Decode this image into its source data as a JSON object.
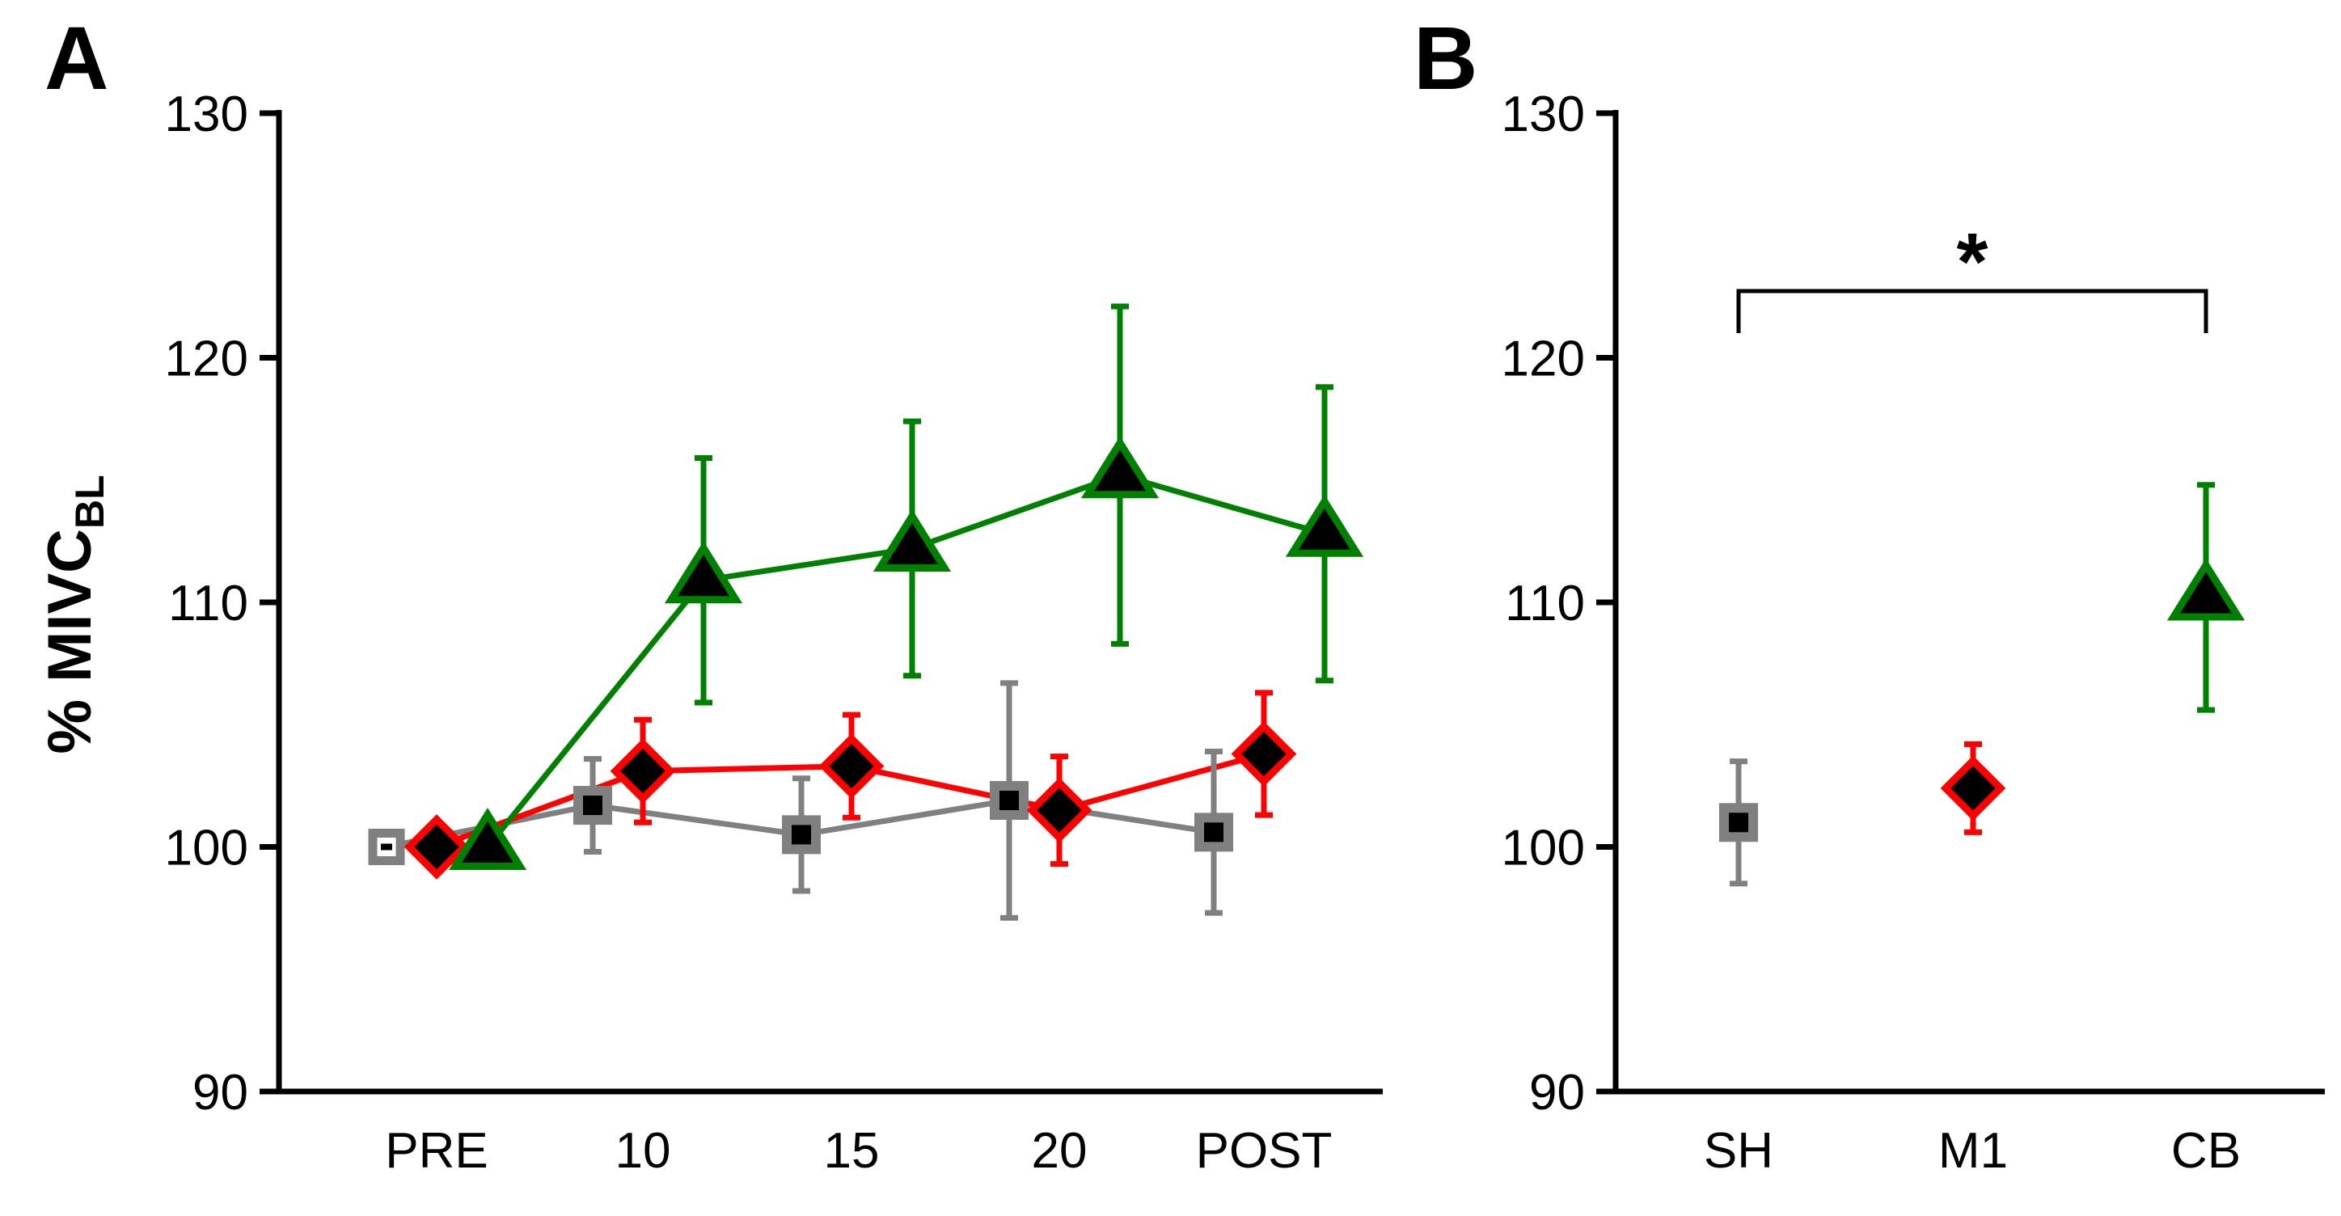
{
  "chart_data": [
    {
      "panel": "A",
      "type": "line",
      "ylabel": "% MIVC",
      "ylabel_sub": "BL",
      "ylim": [
        90,
        130
      ],
      "yticks": [
        "90",
        "100",
        "110",
        "120",
        "130"
      ],
      "categories": [
        "PRE",
        "10",
        "15",
        "20",
        "POST"
      ],
      "series": [
        {
          "name": "SH",
          "color": "#808080",
          "marker": "square",
          "values": [
            100.0,
            101.7,
            100.5,
            101.9,
            100.6
          ],
          "errors": [
            0.0,
            1.9,
            2.3,
            4.8,
            3.3
          ]
        },
        {
          "name": "M1",
          "color": "#ff0000",
          "marker": "diamond",
          "values": [
            100.0,
            103.1,
            103.3,
            101.5,
            103.8
          ],
          "errors": [
            0.0,
            2.1,
            2.1,
            2.2,
            2.5
          ]
        },
        {
          "name": "CB",
          "color": "#008000",
          "marker": "triangle",
          "values": [
            100.0,
            110.9,
            112.2,
            115.2,
            112.8
          ],
          "errors": [
            0.0,
            5.0,
            5.2,
            6.9,
            6.0
          ]
        }
      ]
    },
    {
      "panel": "B",
      "type": "scatter",
      "ylim": [
        90,
        130
      ],
      "yticks": [
        "90",
        "100",
        "110",
        "120",
        "130"
      ],
      "categories": [
        "SH",
        "M1",
        "CB"
      ],
      "series": [
        {
          "name": "SH",
          "color": "#808080",
          "marker": "square",
          "value": 101.0,
          "error": 2.5
        },
        {
          "name": "M1",
          "color": "#ff0000",
          "marker": "diamond",
          "value": 102.4,
          "error": 1.8
        },
        {
          "name": "CB",
          "color": "#008000",
          "marker": "triangle",
          "value": 110.2,
          "error": 4.6
        }
      ],
      "annotation": {
        "text": "*",
        "from": "SH",
        "to": "CB"
      }
    }
  ]
}
